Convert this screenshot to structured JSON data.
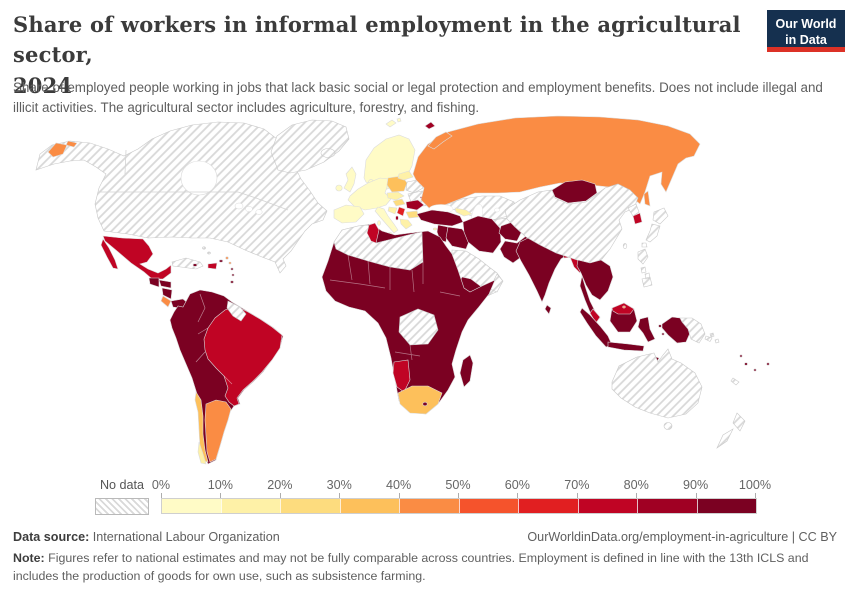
{
  "header": {
    "title_line1": "Share of workers in informal employment in the agricultural sector,",
    "title_line2": "2024",
    "subtitle": "Share of employed people working in jobs that lack basic social or legal protection and employment benefits. Does not include illegal and illicit activities. The agricultural sector includes agriculture, forestry, and fishing.",
    "logo": {
      "line1": "Our World",
      "line2": "in Data",
      "bg": "#15304f",
      "accent": "#dc3126"
    }
  },
  "legend": {
    "no_data_label": "No data",
    "tick_labels": [
      "0%",
      "10%",
      "20%",
      "30%",
      "40%",
      "50%",
      "60%",
      "70%",
      "80%",
      "90%",
      "100%"
    ],
    "bin_colors": [
      "#FFFBC6",
      "#FEF1A7",
      "#FDDC7E",
      "#FDC05B",
      "#FA8C44",
      "#F5532C",
      "#E11F21",
      "#C00424",
      "#A00023",
      "#7B0122"
    ]
  },
  "map": {
    "ocean": "#FFFFFF",
    "border": "#DCDCDC",
    "nodata_border": "#C9C9C9",
    "hatch_line": "#D8D8D8",
    "region_bins": {
      "north_america": "no_data",
      "greenland": "no_data",
      "iceland": "no_data",
      "cuba": "no_data",
      "bahamas": "no_data",
      "guyana": "no_data",
      "ukraine": "no_data",
      "belarus": "no_data",
      "kazakhstan": "no_data",
      "uzbekistan": "no_data",
      "turkmenistan": "no_data",
      "china": "no_data",
      "japan": "no_data",
      "north_korea": "no_data",
      "taiwan": "no_data",
      "philippines": "no_data",
      "saudi_arabia": "no_data",
      "oman": "no_data",
      "north_africa_sahara": "no_data",
      "dr_congo": "no_data",
      "australia": "no_data",
      "tasmania": "no_data",
      "new_zealand": "no_data",
      "papua_new_guinea": "no_data",
      "solomon_islands": "no_data",
      "new_caledonia": "no_data",
      "hainan": "no_data",
      "russia": 5,
      "chukotka": 5,
      "novaya_zemlya": 5,
      "sakhalin": 5,
      "svalbard": 1,
      "arctic_island": 9,
      "mexico": 8,
      "guatemala": 10,
      "honduras": 10,
      "nicaragua": 10,
      "costa_rica": 5,
      "panama": 10,
      "hispaniola": 8,
      "jamaica": 10,
      "puerto_rico": 10,
      "antilles_orange": 5,
      "antilles_dark": 10,
      "trinidad": 10,
      "south_america": 10,
      "brazil": 8,
      "argentina": 5,
      "chile": 4,
      "chile_south": 2,
      "scandinavia": 1,
      "denmark": 1,
      "uk": 1,
      "ireland": 1,
      "europe_west": 1,
      "iberia": 1,
      "italy": 1,
      "sicily": 1,
      "sardinia": 1,
      "poland": 4,
      "baltics": 2,
      "czech_slovakia": 2,
      "hungary": 3,
      "croatia_bosnia": 2,
      "greece": 2,
      "crete": 2,
      "bulgaria": 3,
      "romania": 9,
      "serbia": 7,
      "albania": 9,
      "moldova": 9,
      "cyprus": 2,
      "caucasus": 2,
      "turkey": 10,
      "levant": 10,
      "iraq": 10,
      "iran": 10,
      "yemen": 10,
      "afghanistan": 10,
      "pakistan": 10,
      "kyrgyzstan": 7,
      "tajikistan": 9,
      "africa": 10,
      "tunisia": 8,
      "south_africa": 4,
      "namibia": 8,
      "lesotho": 10,
      "madagascar": 10,
      "india": 10,
      "sri_lanka": 10,
      "bangladesh": 8,
      "myanmar": 8,
      "indochina": 10,
      "malay_peninsula": 10,
      "malaysia": 8,
      "brunei": 5,
      "sumatra": 10,
      "java": 10,
      "borneo": 10,
      "borneo_north": 8,
      "sulawesi": 10,
      "maluku": 10,
      "timor": 10,
      "papua_west": 10,
      "mongolia": 10,
      "south_korea": 8,
      "fiji": 10,
      "vanuatu": 10
    }
  },
  "footer": {
    "data_source_label": "Data source:",
    "data_source": "International Labour Organization",
    "link": "OurWorldinData.org/employment-in-agriculture | CC BY",
    "note_label": "Note:",
    "note": "Figures refer to national estimates and may not be fully comparable across countries. Employment is defined in line with the 13th ICLS and includes the production of goods for own use, such as subsistence farming."
  }
}
